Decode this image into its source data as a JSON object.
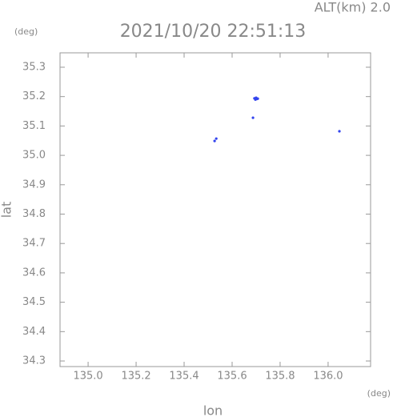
{
  "chart_data": {
    "type": "scatter",
    "title": "2021/10/20 22:51:13",
    "subtitle": "ALT(km) 2.0",
    "y_unit": "(deg)",
    "x_unit": "(deg)",
    "x_label": "lon",
    "y_label": "lat",
    "color": "#3344ee",
    "x": [
      135.527,
      135.534,
      135.687,
      135.693,
      135.697,
      135.7,
      135.703,
      135.707,
      136.047
    ],
    "y": [
      35.049,
      35.057,
      35.128,
      35.194,
      35.19,
      35.196,
      35.192,
      35.193,
      35.082
    ],
    "xlim": [
      134.883,
      136.177
    ],
    "ylim": [
      34.281,
      35.349
    ],
    "xticks": [
      {
        "value": 135.0,
        "label": "135.0"
      },
      135.2,
      135.4,
      135.6,
      135.8,
      {
        "value": 136.0,
        "label": "136.0"
      }
    ],
    "yticks": [
      34.3,
      34.4,
      34.5,
      34.6,
      34.7,
      34.8,
      34.9,
      {
        "value": 35.0,
        "label": "35.0"
      },
      35.1,
      35.2,
      35.3
    ]
  }
}
